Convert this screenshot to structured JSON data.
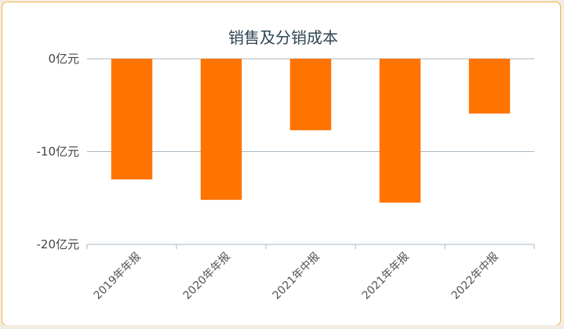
{
  "chart_data": {
    "type": "bar",
    "title": "销售及分销成本",
    "categories": [
      "2019年年报",
      "2020年年报",
      "2021年中报",
      "2021年年报",
      "2022年中报"
    ],
    "values": [
      -13.0,
      -15.2,
      -7.7,
      -15.5,
      -5.9
    ],
    "unit": "亿元",
    "ylim": [
      -20,
      0
    ],
    "yticks": [
      0,
      -10,
      -20
    ],
    "ytick_labels": [
      "0亿元",
      "-10亿元",
      "-20亿元"
    ],
    "xlabel": "",
    "ylabel": "",
    "grid": true,
    "bar_color": "#ff7300",
    "axis_color": "#aab7c4"
  }
}
